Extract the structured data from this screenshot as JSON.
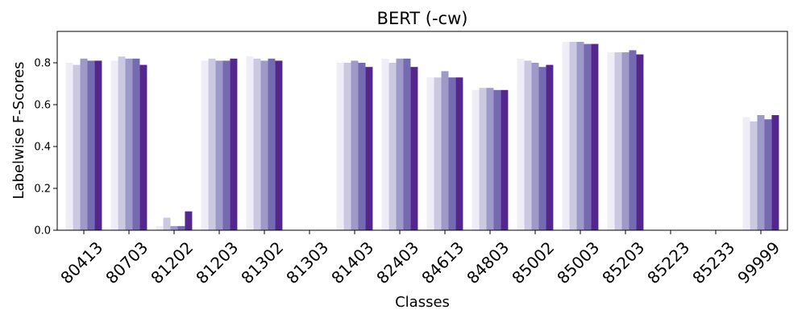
{
  "chart_data": {
    "type": "bar",
    "title": "BERT (-cw)",
    "xlabel": "Classes",
    "ylabel": "Labelwise F-Scores",
    "ylim": [
      0,
      0.95
    ],
    "yticks": [
      "0.0",
      "0.2",
      "0.4",
      "0.6",
      "0.8"
    ],
    "grid": false,
    "legend": "none",
    "categories": [
      "80413",
      "80703",
      "81202",
      "81203",
      "81302",
      "81303",
      "81403",
      "82403",
      "84613",
      "84803",
      "85002",
      "85003",
      "85203",
      "85223",
      "85233",
      "99999"
    ],
    "colors": [
      "#efedf5",
      "#cbc9e2",
      "#9e9ac8",
      "#756bb1",
      "#54278f"
    ],
    "series": [
      {
        "values": [
          0.8,
          0.81,
          0.02,
          0.81,
          0.83,
          0.0,
          0.8,
          0.82,
          0.73,
          0.67,
          0.82,
          0.9,
          0.85,
          0.0,
          0.0,
          0.54
        ]
      },
      {
        "values": [
          0.79,
          0.83,
          0.06,
          0.82,
          0.82,
          0.0,
          0.8,
          0.8,
          0.73,
          0.68,
          0.81,
          0.9,
          0.85,
          0.0,
          0.0,
          0.52
        ]
      },
      {
        "values": [
          0.82,
          0.82,
          0.02,
          0.81,
          0.81,
          0.0,
          0.81,
          0.82,
          0.76,
          0.68,
          0.8,
          0.9,
          0.85,
          0.0,
          0.0,
          0.55
        ]
      },
      {
        "values": [
          0.81,
          0.82,
          0.02,
          0.81,
          0.82,
          0.0,
          0.8,
          0.82,
          0.73,
          0.67,
          0.78,
          0.89,
          0.86,
          0.0,
          0.0,
          0.53
        ]
      },
      {
        "values": [
          0.81,
          0.79,
          0.09,
          0.82,
          0.81,
          0.0,
          0.78,
          0.78,
          0.73,
          0.67,
          0.79,
          0.89,
          0.84,
          0.0,
          0.0,
          0.55
        ]
      }
    ]
  }
}
